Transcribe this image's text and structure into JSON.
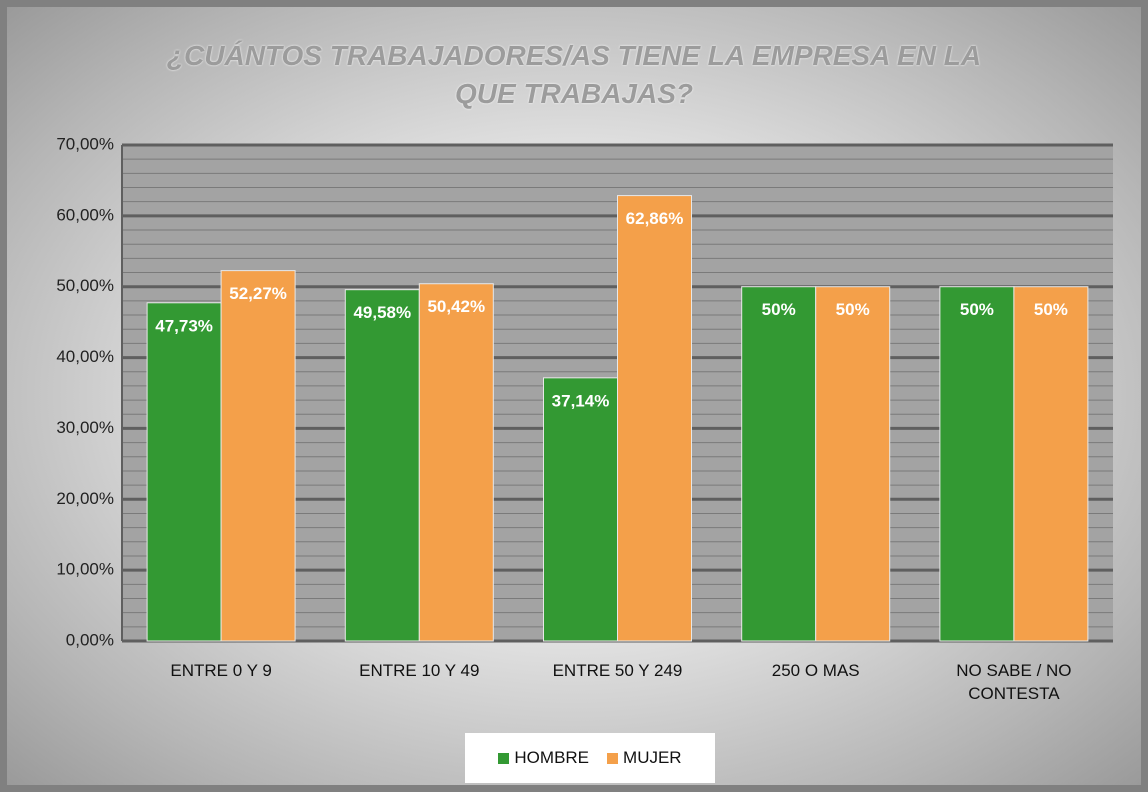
{
  "chart_data": {
    "type": "bar",
    "title": "¿CUÁNTOS TRABAJADORES/AS TIENE LA EMPRESA EN LA QUE TRABAJAS?",
    "categories": [
      "ENTRE 0 Y 9",
      "ENTRE 10 Y 49",
      "ENTRE 50 Y 249",
      "250 O MAS",
      "NO SABE / NO CONTESTA"
    ],
    "series": [
      {
        "name": "HOMBRE",
        "color": "#339933",
        "values": [
          47.73,
          49.58,
          37.14,
          50,
          50
        ],
        "value_labels": [
          "47,73%",
          "49,58%",
          "37,14%",
          "50%",
          "50%"
        ]
      },
      {
        "name": "MUJER",
        "color": "#f4a04a",
        "values": [
          52.27,
          50.42,
          62.86,
          50,
          50
        ],
        "value_labels": [
          "52,27%",
          "50,42%",
          "62,86%",
          "50%",
          "50%"
        ]
      }
    ],
    "ylim": [
      0,
      70
    ],
    "yticks": [
      {
        "value": 0,
        "label": "0,00%"
      },
      {
        "value": 10,
        "label": "10,00%"
      },
      {
        "value": 20,
        "label": "20,00%"
      },
      {
        "value": 30,
        "label": "30,00%"
      },
      {
        "value": 40,
        "label": "40,00%"
      },
      {
        "value": 50,
        "label": "50,00%"
      },
      {
        "value": 60,
        "label": "60,00%"
      },
      {
        "value": 70,
        "label": "70,00%"
      }
    ],
    "yminor_ticks": [
      2,
      4,
      6,
      8,
      12,
      14,
      16,
      18,
      22,
      24,
      26,
      28,
      32,
      34,
      36,
      38,
      42,
      44,
      46,
      48,
      52,
      54,
      56,
      58,
      62,
      64,
      66,
      68
    ],
    "grid": true,
    "legend": "bottom"
  }
}
